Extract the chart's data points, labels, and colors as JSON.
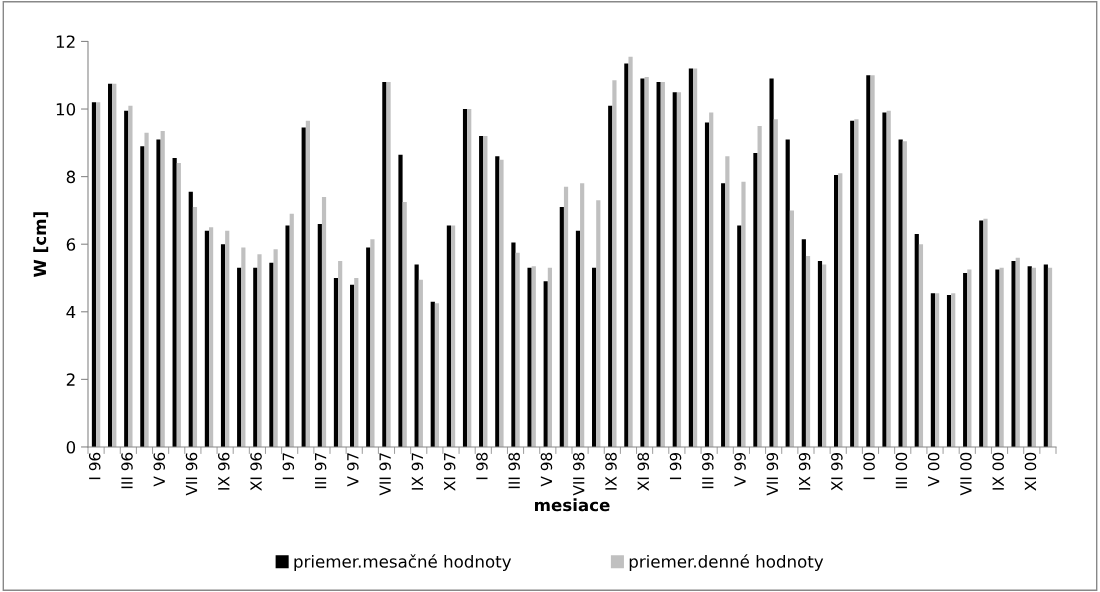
{
  "chart_data": {
    "type": "bar",
    "xlabel": "mesiace",
    "ylabel": "W [cm]",
    "categories": [
      "I 96",
      null,
      "III 96",
      null,
      "V 96",
      null,
      "VII 96",
      null,
      "IX 96",
      null,
      "XI 96",
      null,
      "I 97",
      null,
      "III 97",
      null,
      "V 97",
      null,
      "VII 97",
      null,
      "IX 97",
      null,
      "XI 97",
      null,
      "I 98",
      null,
      "III 98",
      null,
      "V 98",
      null,
      "VII 98",
      null,
      "IX 98",
      null,
      "XI 98",
      null,
      "I 99",
      null,
      "III 99",
      null,
      "V 99",
      null,
      "VII 99",
      null,
      "IX 99",
      null,
      "XI 99",
      null,
      "I 00",
      null,
      "III 00",
      null,
      "V 00",
      null,
      "VII 00",
      null,
      "IX 00",
      null,
      "XI 00",
      null
    ],
    "series": [
      {
        "name": "priemer.mesačné hodnoty",
        "color": "#000000",
        "values": [
          10.2,
          10.75,
          9.95,
          8.9,
          9.1,
          8.55,
          7.55,
          6.4,
          6.0,
          5.3,
          5.3,
          5.45,
          6.55,
          9.45,
          6.6,
          5.0,
          4.8,
          5.9,
          10.8,
          8.65,
          5.4,
          4.3,
          6.55,
          10.0,
          9.2,
          8.6,
          6.05,
          5.3,
          4.9,
          7.1,
          6.4,
          5.3,
          10.1,
          11.35,
          10.9,
          10.8,
          10.5,
          11.2,
          9.6,
          7.8,
          6.55,
          8.7,
          10.9,
          9.1,
          6.15,
          5.5,
          8.05,
          9.65,
          11.0,
          9.9,
          9.1,
          6.3,
          4.55,
          4.5,
          5.15,
          6.7,
          5.25,
          5.5,
          5.35,
          5.4
        ]
      },
      {
        "name": "priemer.denné hodnoty",
        "color": "#c0c0c0",
        "values": [
          10.2,
          10.75,
          10.1,
          9.3,
          9.35,
          8.4,
          7.1,
          6.5,
          6.4,
          5.9,
          5.7,
          5.85,
          6.9,
          9.65,
          7.4,
          5.5,
          5.0,
          6.15,
          10.8,
          7.25,
          4.95,
          4.25,
          6.55,
          10.0,
          9.2,
          8.5,
          5.75,
          5.35,
          5.3,
          7.7,
          7.8,
          7.3,
          10.85,
          11.55,
          10.95,
          10.8,
          10.5,
          11.2,
          9.9,
          8.6,
          7.85,
          9.5,
          9.7,
          7.0,
          5.65,
          5.4,
          8.1,
          9.7,
          11.0,
          9.95,
          9.05,
          6.0,
          4.55,
          4.55,
          5.25,
          6.75,
          5.3,
          5.6,
          5.3,
          5.3
        ]
      }
    ],
    "ylim": [
      0,
      12
    ],
    "yticks": [
      0,
      2,
      4,
      6,
      8,
      10,
      12
    ],
    "grid": false,
    "legend": "bottom"
  }
}
